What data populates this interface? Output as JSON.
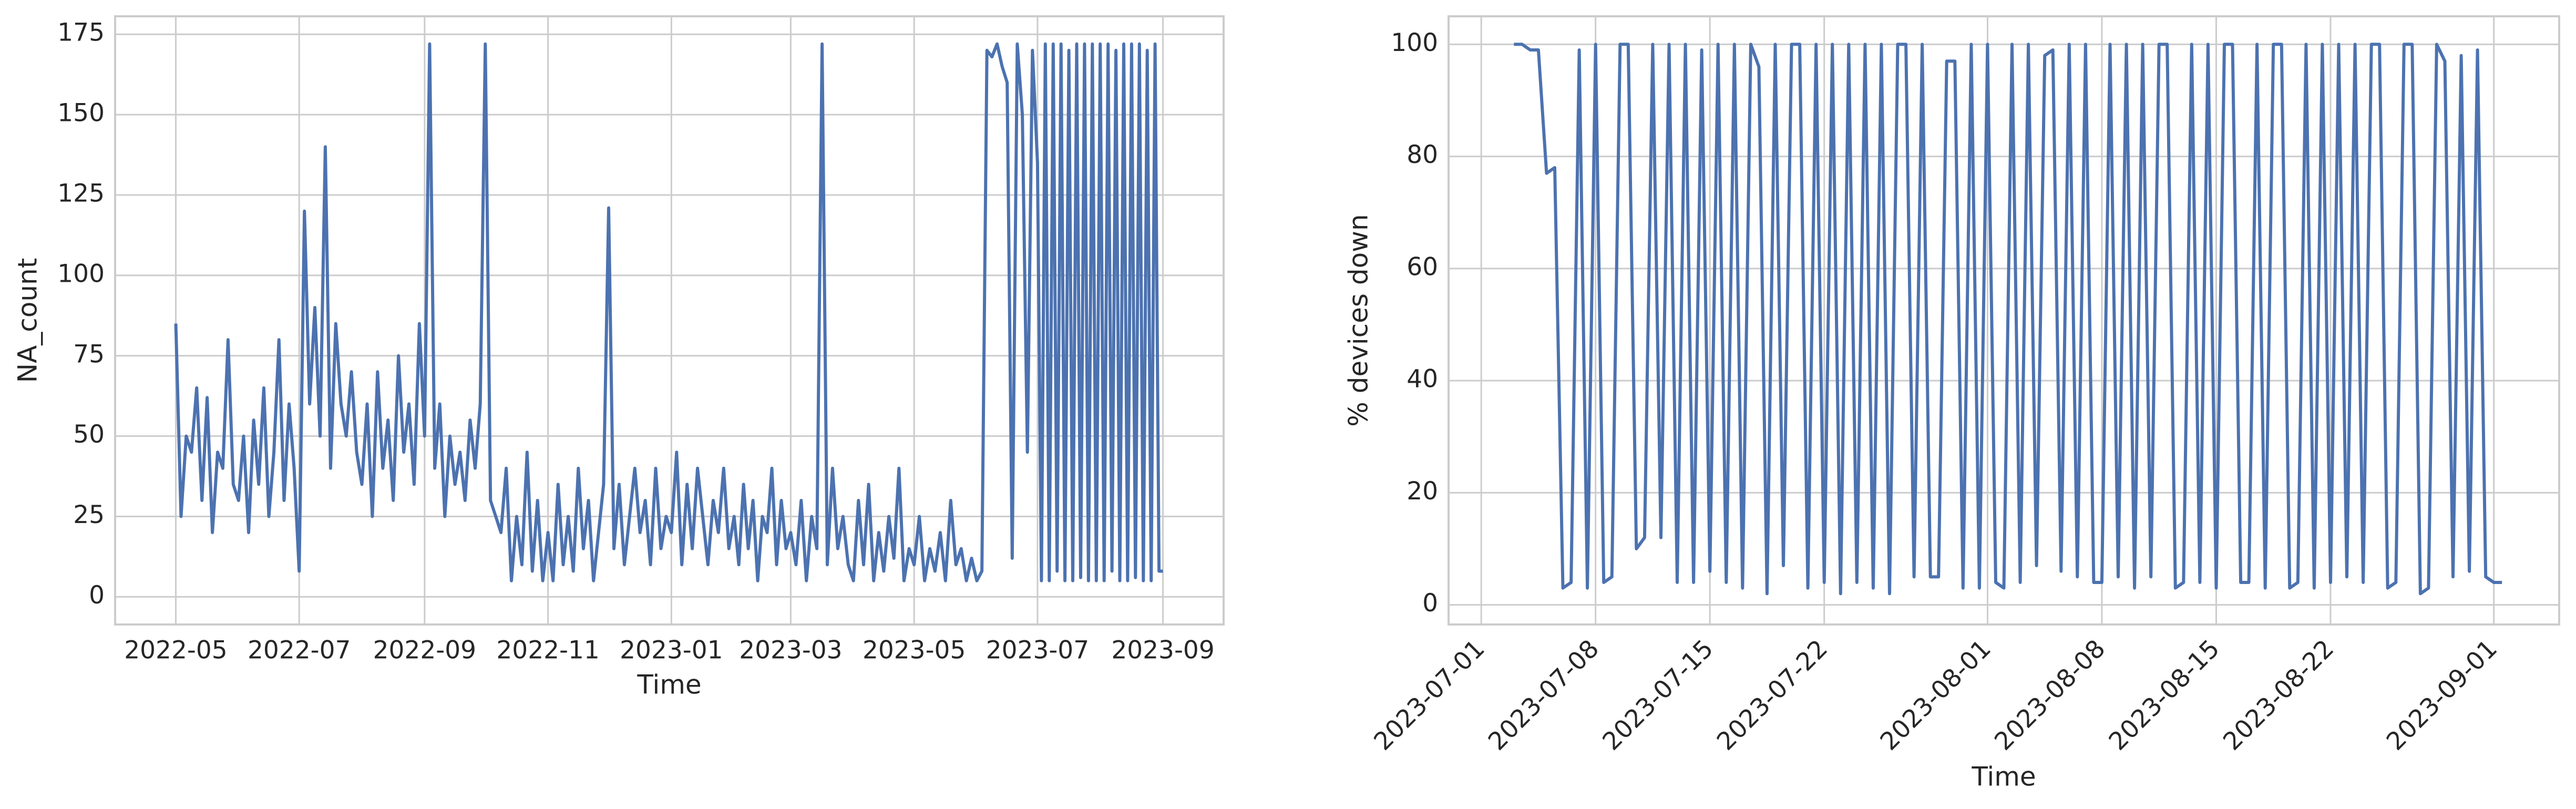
{
  "chart_data": [
    {
      "type": "line",
      "xlabel": "Time",
      "ylabel": "NA_count",
      "color": "#4c72b0",
      "grid": true,
      "xlim": [
        "2022-04",
        "2023-10"
      ],
      "ylim": [
        -8.6,
        180.6
      ],
      "xticks": [
        "2022-05",
        "2022-07",
        "2022-09",
        "2022-11",
        "2023-01",
        "2023-03",
        "2023-05",
        "2023-07",
        "2023-09"
      ],
      "yticks": [
        0,
        25,
        50,
        75,
        100,
        125,
        150,
        175
      ],
      "x": [
        "2022-05",
        "2022-05",
        "2022-05",
        "2022-05",
        "2022-05",
        "2022-05",
        "2022-05",
        "2022-05",
        "2022-05",
        "2022-05",
        "2022-05",
        "2022-05",
        "2022-06",
        "2022-06",
        "2022-06",
        "2022-06",
        "2022-06",
        "2022-06",
        "2022-06",
        "2022-06",
        "2022-06",
        "2022-06",
        "2022-06",
        "2022-06",
        "2022-07",
        "2022-07",
        "2022-07",
        "2022-07",
        "2022-07",
        "2022-07",
        "2022-07",
        "2022-07",
        "2022-07",
        "2022-07",
        "2022-07",
        "2022-07",
        "2022-08",
        "2022-08",
        "2022-08",
        "2022-08",
        "2022-08",
        "2022-08",
        "2022-08",
        "2022-08",
        "2022-08",
        "2022-08",
        "2022-08",
        "2022-08",
        "2022-09",
        "2022-09",
        "2022-09",
        "2022-09",
        "2022-09",
        "2022-09",
        "2022-09",
        "2022-09",
        "2022-09",
        "2022-09",
        "2022-09",
        "2022-09",
        "2022-10",
        "2022-10",
        "2022-10",
        "2022-10",
        "2022-10",
        "2022-10",
        "2022-10",
        "2022-10",
        "2022-10",
        "2022-10",
        "2022-10",
        "2022-10",
        "2022-11",
        "2022-11",
        "2022-11",
        "2022-11",
        "2022-11",
        "2022-11",
        "2022-11",
        "2022-11",
        "2022-11",
        "2022-11",
        "2022-11",
        "2022-11",
        "2022-12",
        "2022-12",
        "2022-12",
        "2022-12",
        "2022-12",
        "2022-12",
        "2022-12",
        "2022-12",
        "2022-12",
        "2022-12",
        "2022-12",
        "2022-12",
        "2023-01",
        "2023-01",
        "2023-01",
        "2023-01",
        "2023-01",
        "2023-01",
        "2023-01",
        "2023-01",
        "2023-01",
        "2023-01",
        "2023-01",
        "2023-01",
        "2023-02",
        "2023-02",
        "2023-02",
        "2023-02",
        "2023-02",
        "2023-02",
        "2023-02",
        "2023-02",
        "2023-02",
        "2023-02",
        "2023-02",
        "2023-02",
        "2023-03",
        "2023-03",
        "2023-03",
        "2023-03",
        "2023-03",
        "2023-03",
        "2023-03",
        "2023-03",
        "2023-03",
        "2023-03",
        "2023-03",
        "2023-03",
        "2023-04",
        "2023-04",
        "2023-04",
        "2023-04",
        "2023-04",
        "2023-04",
        "2023-04",
        "2023-04",
        "2023-04",
        "2023-04",
        "2023-04",
        "2023-04",
        "2023-05",
        "2023-05",
        "2023-05",
        "2023-05",
        "2023-05",
        "2023-05",
        "2023-05",
        "2023-05",
        "2023-05",
        "2023-05",
        "2023-05",
        "2023-05",
        "2023-06",
        "2023-06",
        "2023-06",
        "2023-06",
        "2023-06",
        "2023-06",
        "2023-06",
        "2023-06",
        "2023-06",
        "2023-06",
        "2023-06",
        "2023-06",
        "2023-07",
        "2023-07",
        "2023-07",
        "2023-07",
        "2023-07",
        "2023-07",
        "2023-07",
        "2023-07",
        "2023-07",
        "2023-07",
        "2023-07",
        "2023-07",
        "2023-07",
        "2023-07",
        "2023-07",
        "2023-07",
        "2023-08",
        "2023-08",
        "2023-08",
        "2023-08",
        "2023-08",
        "2023-08",
        "2023-08",
        "2023-08",
        "2023-08",
        "2023-08",
        "2023-08",
        "2023-08",
        "2023-08",
        "2023-08",
        "2023-08",
        "2023-08",
        "2023-09"
      ],
      "values": [
        85,
        25,
        50,
        45,
        65,
        30,
        62,
        20,
        45,
        40,
        80,
        35,
        30,
        50,
        20,
        55,
        35,
        65,
        25,
        45,
        80,
        30,
        60,
        40,
        8,
        120,
        60,
        90,
        50,
        140,
        40,
        85,
        60,
        50,
        70,
        45,
        35,
        60,
        25,
        70,
        40,
        55,
        30,
        75,
        45,
        60,
        35,
        85,
        50,
        172,
        40,
        60,
        25,
        50,
        35,
        45,
        30,
        55,
        40,
        60,
        172,
        30,
        25,
        20,
        40,
        5,
        25,
        10,
        45,
        8,
        30,
        5,
        20,
        5,
        35,
        10,
        25,
        8,
        40,
        15,
        30,
        5,
        20,
        35,
        121,
        15,
        35,
        10,
        25,
        40,
        20,
        30,
        10,
        40,
        15,
        25,
        20,
        45,
        10,
        35,
        15,
        40,
        25,
        10,
        30,
        20,
        40,
        15,
        25,
        10,
        35,
        15,
        30,
        5,
        25,
        20,
        40,
        10,
        30,
        15,
        20,
        10,
        30,
        5,
        25,
        15,
        172,
        10,
        40,
        15,
        25,
        10,
        5,
        30,
        10,
        35,
        5,
        20,
        8,
        25,
        12,
        40,
        5,
        15,
        10,
        25,
        5,
        15,
        8,
        20,
        5,
        30,
        10,
        15,
        5,
        12,
        5,
        8,
        170,
        168,
        172,
        165,
        160,
        12,
        172,
        150,
        45,
        170,
        135,
        5,
        172,
        5,
        172,
        8,
        172,
        5,
        170,
        5,
        172,
        6,
        172,
        5,
        172,
        5,
        172,
        5,
        172,
        8,
        170,
        5,
        172,
        5,
        172,
        6,
        172,
        5,
        170,
        5,
        172,
        8,
        8
      ]
    },
    {
      "type": "line",
      "xlabel": "Time",
      "ylabel": "% devices down",
      "color": "#4c72b0",
      "grid": true,
      "xlim": [
        "2023-06-29",
        "2023-09-05"
      ],
      "ylim": [
        -3.5,
        105
      ],
      "xticks": [
        "2023-07-01",
        "2023-07-08",
        "2023-07-15",
        "2023-07-22",
        "2023-08-01",
        "2023-08-08",
        "2023-08-15",
        "2023-08-22",
        "2023-09-01"
      ],
      "yticks": [
        0,
        20,
        40,
        60,
        80,
        100
      ],
      "x": [
        "2023-07-03",
        "2023-07-03",
        "2023-07-04",
        "2023-07-04",
        "2023-07-05",
        "2023-07-05",
        "2023-07-06",
        "2023-07-06",
        "2023-07-07",
        "2023-07-07",
        "2023-07-08",
        "2023-07-08",
        "2023-07-09",
        "2023-07-09",
        "2023-07-10",
        "2023-07-10",
        "2023-07-11",
        "2023-07-11",
        "2023-07-12",
        "2023-07-12",
        "2023-07-13",
        "2023-07-13",
        "2023-07-14",
        "2023-07-14",
        "2023-07-15",
        "2023-07-15",
        "2023-07-16",
        "2023-07-16",
        "2023-07-17",
        "2023-07-17",
        "2023-07-18",
        "2023-07-18",
        "2023-07-19",
        "2023-07-19",
        "2023-07-20",
        "2023-07-20",
        "2023-07-21",
        "2023-07-21",
        "2023-07-22",
        "2023-07-22",
        "2023-07-23",
        "2023-07-23",
        "2023-07-24",
        "2023-07-24",
        "2023-07-25",
        "2023-07-25",
        "2023-07-26",
        "2023-07-26",
        "2023-07-27",
        "2023-07-27",
        "2023-07-28",
        "2023-07-28",
        "2023-07-29",
        "2023-07-29",
        "2023-07-30",
        "2023-07-30",
        "2023-07-31",
        "2023-07-31",
        "2023-08-01",
        "2023-08-01",
        "2023-08-02",
        "2023-08-02",
        "2023-08-03",
        "2023-08-03",
        "2023-08-04",
        "2023-08-04",
        "2023-08-05",
        "2023-08-05",
        "2023-08-06",
        "2023-08-06",
        "2023-08-07",
        "2023-08-07",
        "2023-08-08",
        "2023-08-08",
        "2023-08-09",
        "2023-08-09",
        "2023-08-10",
        "2023-08-10",
        "2023-08-11",
        "2023-08-11",
        "2023-08-12",
        "2023-08-12",
        "2023-08-13",
        "2023-08-13",
        "2023-08-14",
        "2023-08-14",
        "2023-08-15",
        "2023-08-15",
        "2023-08-16",
        "2023-08-16",
        "2023-08-17",
        "2023-08-17",
        "2023-08-18",
        "2023-08-18",
        "2023-08-19",
        "2023-08-19",
        "2023-08-20",
        "2023-08-20",
        "2023-08-21",
        "2023-08-21",
        "2023-08-22",
        "2023-08-22",
        "2023-08-23",
        "2023-08-23",
        "2023-08-24",
        "2023-08-24",
        "2023-08-25",
        "2023-08-25",
        "2023-08-26",
        "2023-08-26",
        "2023-08-27",
        "2023-08-27",
        "2023-08-28",
        "2023-08-28",
        "2023-08-29",
        "2023-08-29",
        "2023-08-30",
        "2023-08-30",
        "2023-08-31",
        "2023-08-31",
        "2023-09-01",
        "2023-09-01"
      ],
      "values": [
        100,
        100,
        99,
        99,
        77,
        78,
        3,
        4,
        99,
        3,
        100,
        4,
        5,
        100,
        100,
        10,
        12,
        100,
        12,
        100,
        4,
        100,
        4,
        99,
        6,
        100,
        4,
        100,
        3,
        100,
        96,
        2,
        100,
        7,
        100,
        100,
        3,
        100,
        4,
        100,
        2,
        100,
        4,
        100,
        3,
        100,
        2,
        100,
        100,
        5,
        100,
        5,
        5,
        97,
        97,
        3,
        100,
        3,
        100,
        4,
        3,
        100,
        4,
        100,
        7,
        98,
        99,
        6,
        100,
        5,
        100,
        4,
        4,
        100,
        5,
        100,
        3,
        100,
        5,
        100,
        100,
        3,
        4,
        100,
        4,
        100,
        3,
        100,
        100,
        4,
        4,
        100,
        3,
        100,
        100,
        3,
        4,
        100,
        3,
        100,
        4,
        100,
        5,
        100,
        4,
        100,
        100,
        3,
        4,
        100,
        100,
        2,
        3,
        100,
        97,
        5,
        98,
        6,
        99,
        5,
        4,
        4
      ]
    }
  ]
}
